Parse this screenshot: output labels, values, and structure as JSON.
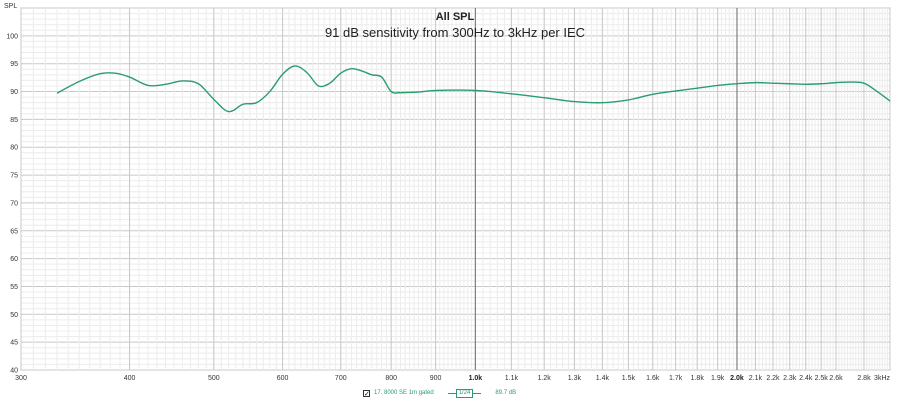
{
  "chart_data": {
    "type": "line",
    "title": "All SPL",
    "subtitle": "91 dB sensitivity from 300Hz to 3kHz per IEC",
    "ylabel": "SPL",
    "xlabel": "",
    "xscale": "log",
    "xlim": [
      300,
      3000
    ],
    "ylim": [
      40,
      105
    ],
    "grid": true,
    "yticks": [
      40,
      45,
      50,
      55,
      60,
      65,
      70,
      75,
      80,
      85,
      90,
      95,
      100
    ],
    "xticks": [
      {
        "value": 300,
        "label": "300",
        "major": false
      },
      {
        "value": 400,
        "label": "400",
        "major": false
      },
      {
        "value": 500,
        "label": "500",
        "major": false
      },
      {
        "value": 600,
        "label": "600",
        "major": false
      },
      {
        "value": 700,
        "label": "700",
        "major": false
      },
      {
        "value": 800,
        "label": "800",
        "major": false
      },
      {
        "value": 900,
        "label": "900",
        "major": false
      },
      {
        "value": 1000,
        "label": "1.0k",
        "major": true
      },
      {
        "value": 1100,
        "label": "1.1k",
        "major": false
      },
      {
        "value": 1200,
        "label": "1.2k",
        "major": false
      },
      {
        "value": 1300,
        "label": "1.3k",
        "major": false
      },
      {
        "value": 1400,
        "label": "1.4k",
        "major": false
      },
      {
        "value": 1500,
        "label": "1.5k",
        "major": false
      },
      {
        "value": 1600,
        "label": "1.6k",
        "major": false
      },
      {
        "value": 1700,
        "label": "1.7k",
        "major": false
      },
      {
        "value": 1800,
        "label": "1.8k",
        "major": false
      },
      {
        "value": 1900,
        "label": "1.9k",
        "major": false
      },
      {
        "value": 2000,
        "label": "2.0k",
        "major": true
      },
      {
        "value": 2100,
        "label": "2.1k",
        "major": false
      },
      {
        "value": 2200,
        "label": "2.2k",
        "major": false
      },
      {
        "value": 2300,
        "label": "2.3k",
        "major": false
      },
      {
        "value": 2400,
        "label": "2.4k",
        "major": false
      },
      {
        "value": 2500,
        "label": "2.5k",
        "major": false
      },
      {
        "value": 2600,
        "label": "2.6k",
        "major": false
      },
      {
        "value": 2800,
        "label": "2.8k",
        "major": false
      },
      {
        "value": 3000,
        "label": "3kHz",
        "major": false
      }
    ],
    "series": [
      {
        "color": "#2a9d6f",
        "x": [
          330,
          350,
          370,
          385,
          400,
          420,
          440,
          460,
          480,
          500,
          520,
          540,
          560,
          580,
          600,
          620,
          640,
          660,
          680,
          700,
          720,
          740,
          760,
          780,
          800,
          820,
          860,
          900,
          1000,
          1100,
          1200,
          1300,
          1400,
          1500,
          1600,
          1700,
          1800,
          1900,
          2000,
          2100,
          2200,
          2300,
          2400,
          2500,
          2600,
          2700,
          2800,
          2900,
          3000
        ],
        "y": [
          89.7,
          91.8,
          93.2,
          93.3,
          92.6,
          91.1,
          91.3,
          91.9,
          91.4,
          88.6,
          86.4,
          87.7,
          88.0,
          90.0,
          93.1,
          94.6,
          93.4,
          91.0,
          91.5,
          93.3,
          94.1,
          93.7,
          93.0,
          92.6,
          90.0,
          89.8,
          89.9,
          90.2,
          90.2,
          89.6,
          88.9,
          88.2,
          88.0,
          88.5,
          89.5,
          90.1,
          90.6,
          91.1,
          91.4,
          91.6,
          91.5,
          91.4,
          91.3,
          91.4,
          91.6,
          91.7,
          91.5,
          90.0,
          88.3
        ]
      }
    ],
    "legend": {
      "checked": true,
      "entry": "17. 8000 SE 1m gated",
      "smoothing": "1/24",
      "level": "89.7 dB"
    }
  }
}
